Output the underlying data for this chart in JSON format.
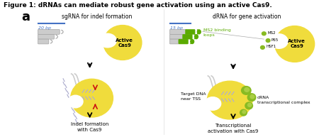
{
  "figure_title": "Figure 1: dRNAs can mediate robust gene activation using an active Cas9.",
  "panel_label": "a",
  "left_title": "sgRNA for indel formation",
  "right_title": "dRNA for gene activation",
  "left_bp": "20 bp",
  "right_bp": "15 bp",
  "ms2_label": "MS2 binding\nloops",
  "active_cas9": "Active\nCas9",
  "ms2_tag": "MS2",
  "p65_tag": "P65",
  "hsf1_tag": "HSF1",
  "target_dna": "Target DNA\nnear TSS",
  "drna_complex": "dRNA\ntranscriptional complex",
  "left_bottom": "Indel formation\nwith Cas9",
  "right_bottom": "Transcriptional\nactivation with Cas9",
  "yellow": "#F0DC3C",
  "yellow2": "#E8CC00",
  "green1": "#5AAA00",
  "green2": "#88BB22",
  "green3": "#AACE44",
  "blue": "#4472C4",
  "red": "#CC1111",
  "gray1": "#BBBBBB",
  "gray2": "#DDDDDD",
  "bg": "#FFFFFF"
}
